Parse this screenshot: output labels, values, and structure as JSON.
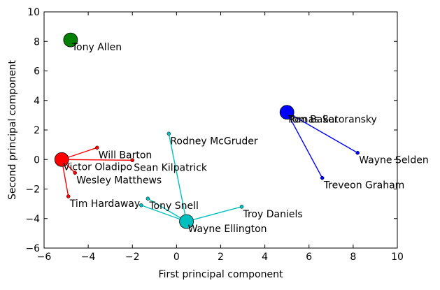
{
  "chart_data": {
    "type": "scatter",
    "title": "",
    "xlabel": "First principal component",
    "ylabel": "Second principal component",
    "xlim": [
      -6,
      10
    ],
    "ylim": [
      -6,
      10
    ],
    "xticks": [
      -6,
      -4,
      -2,
      0,
      2,
      4,
      6,
      8,
      10
    ],
    "yticks": [
      -6,
      -4,
      -2,
      0,
      2,
      4,
      6,
      8,
      10
    ],
    "xtick_labels": [
      "−6",
      "−4",
      "−2",
      "0",
      "2",
      "4",
      "6",
      "8",
      "10"
    ],
    "ytick_labels": [
      "−6",
      "−4",
      "−2",
      "0",
      "2",
      "4",
      "6",
      "8",
      "10"
    ],
    "grid": false,
    "legend": "none",
    "clusters": [
      {
        "color": "#008000",
        "centroid": {
          "x": -4.8,
          "y": 8.1,
          "label": "Tony Allen"
        },
        "members": []
      },
      {
        "color": "#ff0000",
        "centroid": {
          "x": -5.2,
          "y": 0.0,
          "label": "Victor Oladipo"
        },
        "members": [
          {
            "x": -3.6,
            "y": 0.8,
            "label": "Will Barton"
          },
          {
            "x": -2.0,
            "y": -0.05,
            "label": "Sean Kilpatrick"
          },
          {
            "x": -4.6,
            "y": -0.9,
            "label": "Wesley Matthews"
          },
          {
            "x": -4.9,
            "y": -2.5,
            "label": "Tim Hardaway"
          }
        ]
      },
      {
        "color": "#00bfbf",
        "centroid": {
          "x": 0.45,
          "y": -4.2,
          "label": "Wayne Ellington"
        },
        "members": [
          {
            "x": -0.35,
            "y": 1.75,
            "label": "Rodney McGruder"
          },
          {
            "x": -1.3,
            "y": -2.65,
            "label": "Tony Snell"
          },
          {
            "x": -1.6,
            "y": -3.1,
            "label": ""
          },
          {
            "x": 2.95,
            "y": -3.2,
            "label": "Troy Daniels"
          }
        ]
      },
      {
        "color": "#0000ff",
        "centroid": {
          "x": 5.0,
          "y": 3.2,
          "label": "Ron Baker"
        },
        "members": [
          {
            "x": 5.0,
            "y": 3.2,
            "label": "Tomas Satoransky"
          },
          {
            "x": 8.2,
            "y": 0.45,
            "label": "Wayne Selden"
          },
          {
            "x": 6.6,
            "y": -1.25,
            "label": "Treveon Graham"
          }
        ]
      }
    ]
  }
}
